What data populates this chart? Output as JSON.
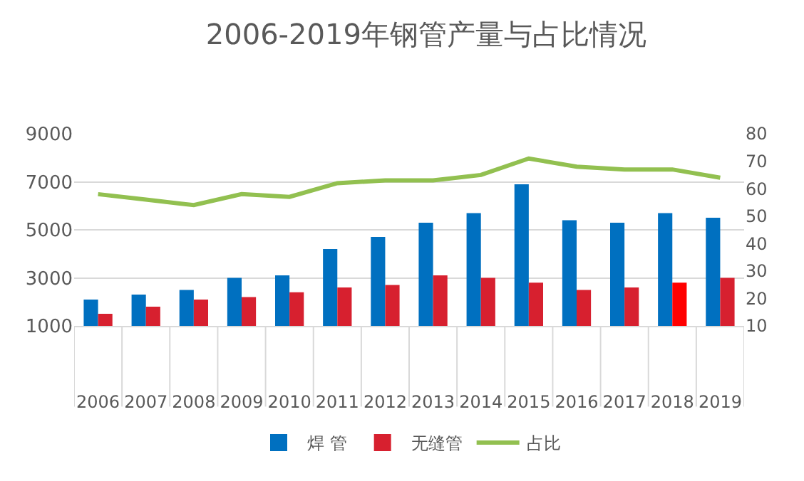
{
  "chart_data": {
    "type": "bar",
    "title": "2006-2019年钢管产量与占比情况",
    "categories": [
      "2006",
      "2007",
      "2008",
      "2009",
      "2010",
      "2011",
      "2012",
      "2013",
      "2014",
      "2015",
      "2016",
      "2017",
      "2018",
      "2019"
    ],
    "series": [
      {
        "name": "焊 管",
        "color": "#0070c0",
        "values": [
          2100,
          2300,
          2500,
          3000,
          3100,
          4200,
          4700,
          5300,
          5700,
          6900,
          5400,
          5300,
          5700,
          5500
        ]
      },
      {
        "name": "无缝管",
        "color": "#d7202f",
        "colors": [
          null,
          null,
          null,
          null,
          null,
          null,
          null,
          null,
          null,
          null,
          null,
          null,
          "#ff0000",
          null
        ],
        "values": [
          1500,
          1800,
          2100,
          2200,
          2400,
          2600,
          2700,
          3100,
          3000,
          2800,
          2500,
          2600,
          2800,
          3000
        ]
      },
      {
        "name": "占比",
        "type": "line",
        "axis": "y2",
        "color": "#92c050",
        "values": [
          58,
          56,
          54,
          58,
          57,
          62,
          63,
          63,
          65,
          71,
          68,
          67,
          67,
          64
        ]
      }
    ],
    "ylim": [
      1000,
      9000
    ],
    "yticks": [
      1000,
      3000,
      5000,
      7000,
      9000
    ],
    "y2lim": [
      10,
      80
    ],
    "y2ticks": [
      10,
      20,
      30,
      40,
      50,
      60,
      70,
      80
    ],
    "grid": "y",
    "legend": "bottom",
    "marker": "none",
    "line_style": "solid"
  }
}
